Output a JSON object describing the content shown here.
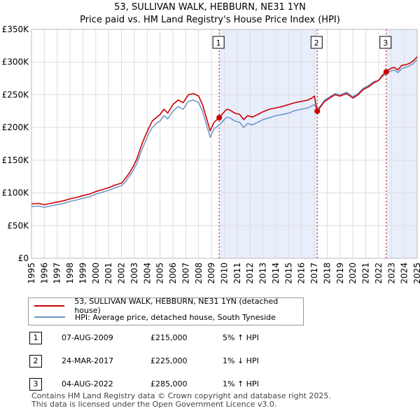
{
  "title": "53, SULLIVAN WALK, HEBBURN, NE31 1YN",
  "subtitle": "Price paid vs. HM Land Registry's House Price Index (HPI)",
  "colors": {
    "property": "#cc0000",
    "hpi": "#6a93c8",
    "shade": "#e8eefb",
    "marker_line": "#cc0000",
    "grid": "#dddddd"
  },
  "legend": {
    "property_label": "53, SULLIVAN WALK, HEBBURN, NE31 1YN (detached house)",
    "hpi_label": "HPI: Average price, detached house, South Tyneside"
  },
  "sales": [
    {
      "num": "1",
      "date": "07-AUG-2009",
      "price": "£215,000",
      "hpi": "5% ↑ HPI"
    },
    {
      "num": "2",
      "date": "24-MAR-2017",
      "price": "£225,000",
      "hpi": "1% ↓ HPI"
    },
    {
      "num": "3",
      "date": "04-AUG-2022",
      "price": "£285,000",
      "hpi": "1% ↑ HPI"
    }
  ],
  "footer": {
    "line1": "Contains HM Land Registry data © Crown copyright and database right 2025.",
    "line2": "This data is licensed under the Open Government Licence v3.0."
  },
  "chart_data": {
    "type": "line",
    "title": "53, SULLIVAN WALK, HEBBURN, NE31 1YN",
    "subtitle": "Price paid vs. HM Land Registry's House Price Index (HPI)",
    "xlim": [
      1995.0,
      2025.0
    ],
    "ylim": [
      0,
      350000
    ],
    "x_ticks": [
      "1995",
      "1996",
      "1997",
      "1998",
      "1999",
      "2000",
      "2001",
      "2002",
      "2003",
      "2004",
      "2005",
      "2006",
      "2007",
      "2008",
      "2009",
      "2010",
      "2011",
      "2012",
      "2013",
      "2014",
      "2015",
      "2016",
      "2017",
      "2018",
      "2019",
      "2020",
      "2021",
      "2022",
      "2023",
      "2024",
      "2025"
    ],
    "y_ticks": [
      {
        "value": 0,
        "label": "£0"
      },
      {
        "value": 50000,
        "label": "£50K"
      },
      {
        "value": 100000,
        "label": "£100K"
      },
      {
        "value": 150000,
        "label": "£150K"
      },
      {
        "value": 200000,
        "label": "£200K"
      },
      {
        "value": 250000,
        "label": "£250K"
      },
      {
        "value": 300000,
        "label": "£300K"
      },
      {
        "value": 350000,
        "label": "£350K"
      }
    ],
    "shaded_ranges": [
      [
        2009.6,
        2017.23
      ],
      [
        2022.6,
        2025.0
      ]
    ],
    "sale_markers": [
      {
        "num": "1",
        "x": 2009.6,
        "y": 215000
      },
      {
        "num": "2",
        "x": 2017.23,
        "y": 225000
      },
      {
        "num": "3",
        "x": 2022.59,
        "y": 285000
      }
    ],
    "series": [
      {
        "name": "53, SULLIVAN WALK, HEBBURN, NE31 1YN (detached house)",
        "x": [
          1995.0,
          1995.5,
          1996.0,
          1996.5,
          1997.0,
          1997.5,
          1998.0,
          1998.5,
          1999.0,
          1999.5,
          2000.0,
          2000.5,
          2001.0,
          2001.5,
          2002.0,
          2002.3,
          2002.6,
          2002.9,
          2003.2,
          2003.5,
          2003.8,
          2004.1,
          2004.4,
          2004.7,
          2005.0,
          2005.3,
          2005.6,
          2006.0,
          2006.4,
          2006.8,
          2007.2,
          2007.6,
          2008.0,
          2008.3,
          2008.6,
          2008.9,
          2009.2,
          2009.6,
          2009.9,
          2010.2,
          2010.5,
          2010.8,
          2011.2,
          2011.5,
          2011.8,
          2012.2,
          2012.6,
          2013.0,
          2013.5,
          2014.0,
          2014.5,
          2015.0,
          2015.5,
          2016.0,
          2016.5,
          2016.8,
          2017.0,
          2017.23,
          2017.5,
          2017.8,
          2018.2,
          2018.6,
          2019.0,
          2019.5,
          2020.0,
          2020.4,
          2020.8,
          2021.2,
          2021.6,
          2022.0,
          2022.3,
          2022.59,
          2022.9,
          2023.2,
          2023.5,
          2023.8,
          2024.1,
          2024.4,
          2024.7,
          2025.0
        ],
        "y": [
          83000,
          84000,
          82000,
          84000,
          86000,
          88000,
          91000,
          93000,
          96000,
          98000,
          102000,
          105000,
          108000,
          112000,
          115000,
          122000,
          130000,
          140000,
          152000,
          170000,
          185000,
          198000,
          210000,
          215000,
          220000,
          228000,
          222000,
          235000,
          242000,
          238000,
          250000,
          252000,
          248000,
          235000,
          215000,
          195000,
          208000,
          215000,
          222000,
          228000,
          226000,
          222000,
          220000,
          212000,
          218000,
          216000,
          220000,
          224000,
          228000,
          230000,
          232000,
          235000,
          238000,
          240000,
          242000,
          245000,
          248000,
          225000,
          232000,
          240000,
          245000,
          250000,
          248000,
          252000,
          245000,
          250000,
          258000,
          262000,
          268000,
          272000,
          280000,
          285000,
          290000,
          292000,
          288000,
          295000,
          296000,
          298000,
          302000,
          308000
        ]
      },
      {
        "name": "HPI: Average price, detached house, South Tyneside",
        "x": [
          1995.0,
          1995.5,
          1996.0,
          1996.5,
          1997.0,
          1997.5,
          1998.0,
          1998.5,
          1999.0,
          1999.5,
          2000.0,
          2000.5,
          2001.0,
          2001.5,
          2002.0,
          2002.3,
          2002.6,
          2002.9,
          2003.2,
          2003.5,
          2003.8,
          2004.1,
          2004.4,
          2004.7,
          2005.0,
          2005.3,
          2005.6,
          2006.0,
          2006.4,
          2006.8,
          2007.2,
          2007.6,
          2008.0,
          2008.3,
          2008.6,
          2008.9,
          2009.2,
          2009.6,
          2009.9,
          2010.2,
          2010.5,
          2010.8,
          2011.2,
          2011.5,
          2011.8,
          2012.2,
          2012.6,
          2013.0,
          2013.5,
          2014.0,
          2014.5,
          2015.0,
          2015.5,
          2016.0,
          2016.5,
          2016.8,
          2017.0,
          2017.23,
          2017.5,
          2017.8,
          2018.2,
          2018.6,
          2019.0,
          2019.5,
          2020.0,
          2020.4,
          2020.8,
          2021.2,
          2021.6,
          2022.0,
          2022.3,
          2022.59,
          2022.9,
          2023.2,
          2023.5,
          2023.8,
          2024.1,
          2024.4,
          2024.7,
          2025.0
        ],
        "y": [
          79000,
          80000,
          78000,
          80000,
          82000,
          84000,
          87000,
          89000,
          92000,
          94000,
          98000,
          101000,
          104000,
          108000,
          111000,
          117000,
          125000,
          134000,
          145000,
          162000,
          176000,
          190000,
          200000,
          206000,
          210000,
          218000,
          213000,
          225000,
          232000,
          228000,
          240000,
          242000,
          238000,
          225000,
          205000,
          185000,
          198000,
          204000,
          210000,
          216000,
          214000,
          210000,
          208000,
          200000,
          206000,
          204000,
          208000,
          212000,
          215000,
          218000,
          220000,
          222000,
          226000,
          228000,
          230000,
          233000,
          235000,
          227000,
          234000,
          242000,
          247000,
          252000,
          250000,
          254000,
          247000,
          252000,
          260000,
          264000,
          270000,
          272000,
          278000,
          282000,
          286000,
          288000,
          284000,
          290000,
          292000,
          294000,
          298000,
          304000
        ]
      }
    ]
  }
}
